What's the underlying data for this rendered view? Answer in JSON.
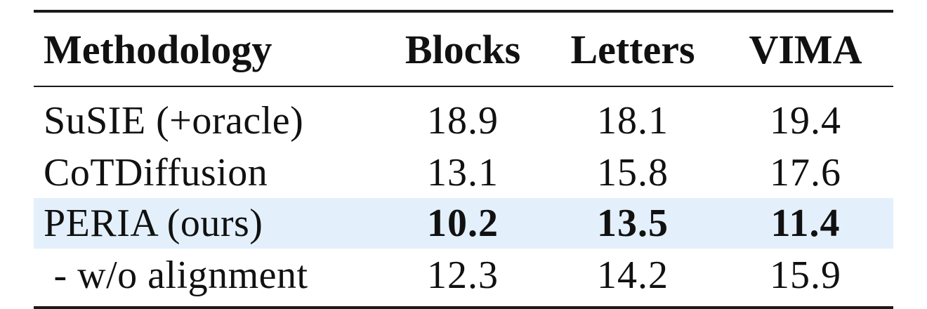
{
  "table": {
    "headers": [
      "Methodology",
      "Blocks",
      "Letters",
      "VIMA"
    ],
    "rows": [
      {
        "method": "SuSIE (+oracle)",
        "blocks": "18.9",
        "letters": "18.1",
        "vima": "19.4"
      },
      {
        "method": "CoTDiffusion",
        "blocks": "13.1",
        "letters": "15.8",
        "vima": "17.6"
      },
      {
        "method": "PERIA (ours)",
        "blocks": "10.2",
        "letters": "13.5",
        "vima": "11.4"
      },
      {
        "method": " - w/o alignment",
        "blocks": "12.3",
        "letters": "14.2",
        "vima": "15.9"
      }
    ],
    "highlight_color": "#e3f0fc",
    "highlight_row": "PERIA (ours)"
  }
}
